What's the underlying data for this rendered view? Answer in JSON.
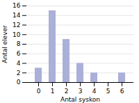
{
  "chart_data": {
    "type": "bar",
    "categories": [
      0,
      1,
      2,
      3,
      4,
      5,
      6
    ],
    "values": [
      3,
      15,
      9,
      4,
      2,
      0,
      2
    ],
    "color": "#aab0d8",
    "xlabel": "Antal syskon",
    "ylabel": "Antal elever",
    "ylim": [
      0,
      16
    ],
    "yticks": [
      0,
      2,
      4,
      6,
      8,
      10,
      12,
      14,
      16
    ],
    "grid": true
  }
}
